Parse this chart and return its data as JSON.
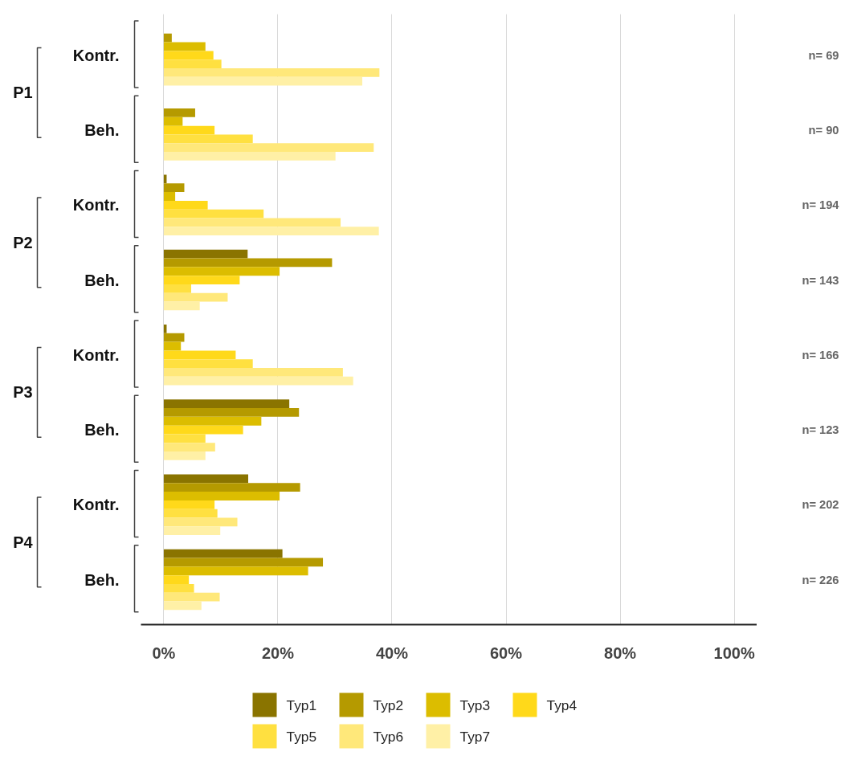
{
  "chart_data": {
    "type": "bar",
    "orientation": "horizontal",
    "categories": [
      "Kontr.",
      "Beh.",
      "Kontr.",
      "Beh.",
      "Kontr.",
      "Beh.",
      "Kontr.",
      "Beh."
    ],
    "series": [
      {
        "name": "Typ1",
        "color": "#8a7400",
        "values": [
          0,
          0,
          0.5,
          14.7,
          0.5,
          22.0,
          14.8,
          20.8
        ]
      },
      {
        "name": "Typ2",
        "color": "#b59a00",
        "values": [
          1.4,
          5.5,
          3.6,
          29.5,
          3.6,
          23.7,
          23.9,
          27.9
        ]
      },
      {
        "name": "Typ3",
        "color": "#dcbd00",
        "values": [
          7.3,
          3.3,
          2.0,
          20.3,
          3.0,
          17.1,
          20.3,
          25.3
        ]
      },
      {
        "name": "Typ4",
        "color": "#ffd91a",
        "values": [
          8.7,
          8.9,
          7.7,
          13.3,
          12.6,
          13.9,
          8.9,
          4.4
        ]
      },
      {
        "name": "Typ5",
        "color": "#ffe040",
        "values": [
          10.1,
          15.6,
          17.5,
          4.8,
          15.6,
          7.3,
          9.4,
          5.3
        ]
      },
      {
        "name": "Typ6",
        "color": "#ffe87a",
        "values": [
          37.8,
          36.8,
          31.0,
          11.2,
          31.4,
          9.0,
          12.9,
          9.8
        ]
      },
      {
        "name": "Typ7",
        "color": "#fff0a6",
        "values": [
          34.8,
          30.1,
          37.7,
          6.3,
          33.2,
          7.3,
          9.9,
          6.6
        ]
      }
    ],
    "xlim": [
      -4,
      104
    ],
    "xticks": [
      {
        "value": 0,
        "label": "0%"
      },
      {
        "value": 20,
        "label": "20%"
      },
      {
        "value": 40,
        "label": "40%"
      },
      {
        "value": 60,
        "label": "60%"
      },
      {
        "value": 80,
        "label": "80%"
      },
      {
        "value": 100,
        "label": "100%"
      }
    ],
    "grid": "x",
    "legend": "bottom",
    "annotations": [
      "P1",
      "P2",
      "P3",
      "P4",
      "n= 69",
      "n= 90",
      "n= 194",
      "n= 143",
      "n= 166",
      "n= 123",
      "n= 202",
      "n= 226"
    ]
  }
}
